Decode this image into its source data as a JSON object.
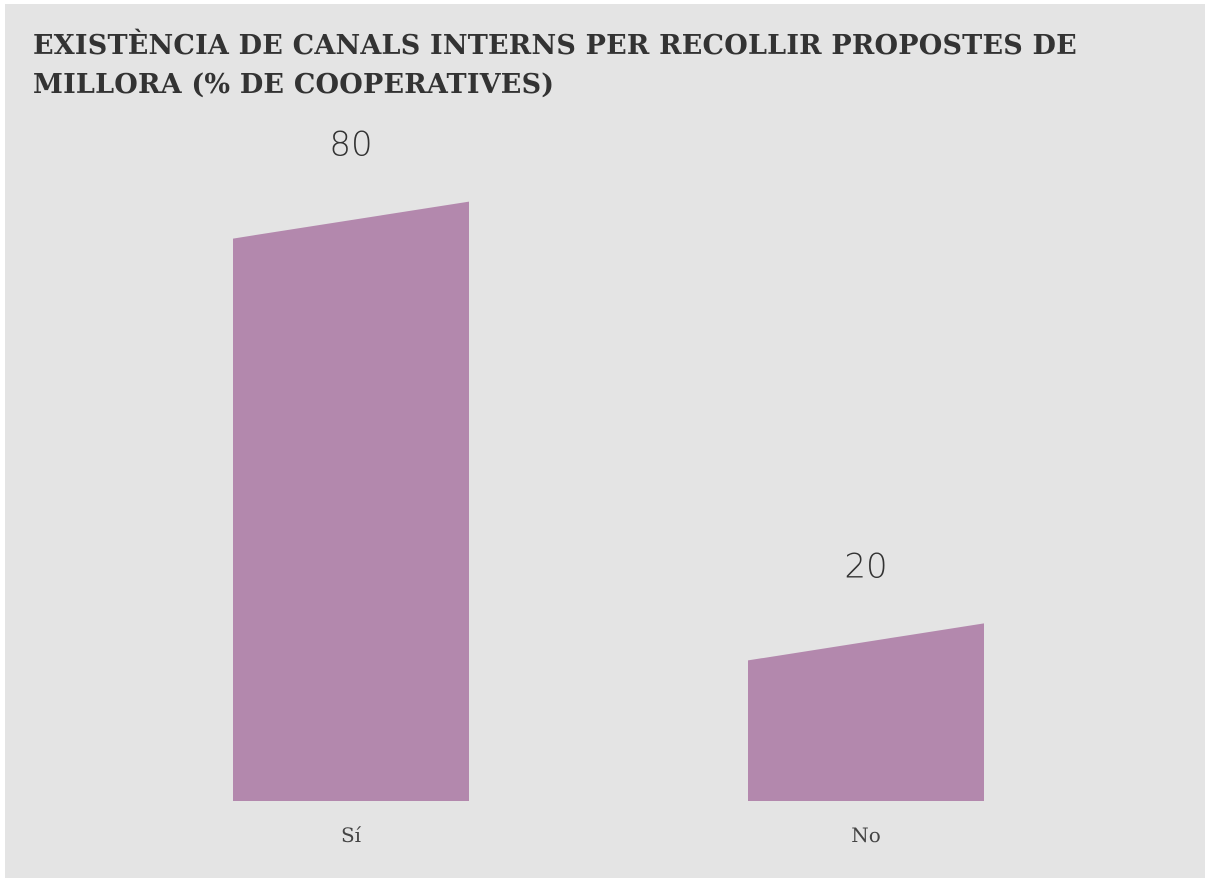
{
  "chart_data": {
    "type": "bar",
    "title": "EXISTÈNCIA DE CANALS INTERNS PER RECOLLIR PROPOSTES DE MILLORA (% DE COOPERATIVES)",
    "categories": [
      "Sí",
      "No"
    ],
    "values": [
      80,
      20
    ],
    "data_labels": [
      "80",
      "20"
    ],
    "xlabel": "",
    "ylabel": "",
    "ylim": [
      0,
      100
    ],
    "grid": false,
    "legend": "none",
    "bar_color": "#b388ad",
    "background_color": "#e4e4e4"
  }
}
